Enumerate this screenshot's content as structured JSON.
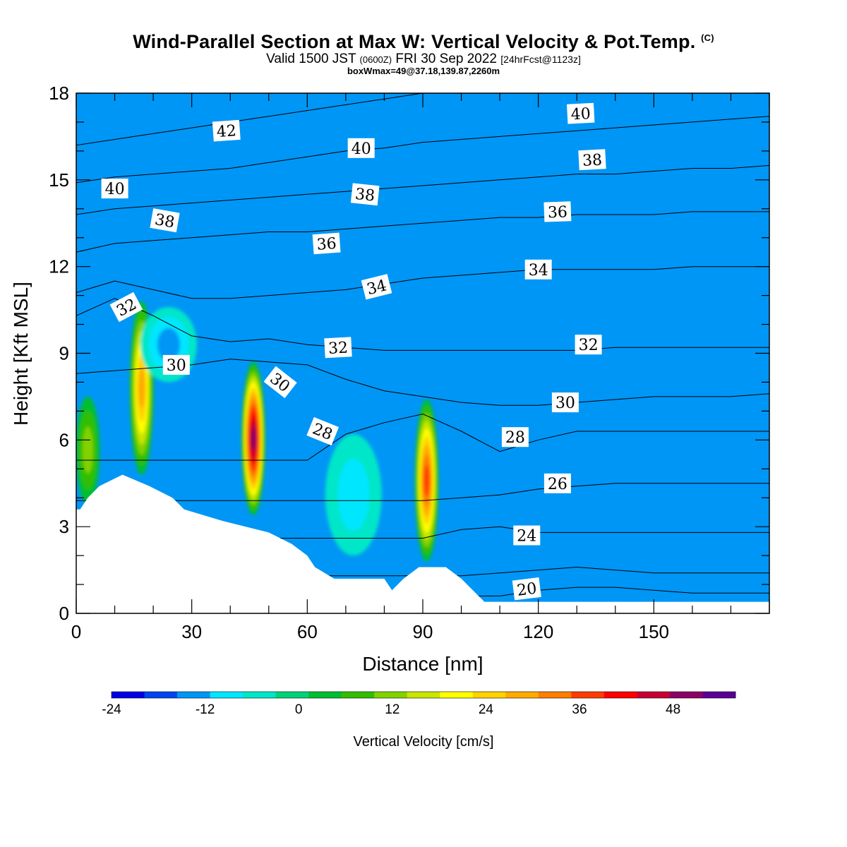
{
  "title": {
    "main": "Wind-Parallel Section at Max W: Vertical Velocity & Pot.Temp.",
    "copyright": "(C)",
    "valid_prefix": "Valid 1500 JST",
    "valid_utc": "(0600Z)",
    "valid_date": "FRI 30 Sep 2022",
    "forecast": "[24hrFcst@1123z]",
    "box_info": "boxWmax=49@37.18,139.87,2260m"
  },
  "chart_data": {
    "type": "heatmap",
    "xlabel": "Distance [nm]",
    "ylabel": "Height [Kft MSL]",
    "xlim": [
      0,
      180
    ],
    "ylim": [
      0,
      18
    ],
    "xticks": [
      "0",
      "30",
      "60",
      "90",
      "120",
      "150"
    ],
    "yticks": [
      "0",
      "3",
      "6",
      "9",
      "12",
      "15",
      "18"
    ],
    "colorbar": {
      "label": "Vertical Velocity [cm/s]",
      "ticks": [
        "-24",
        "-12",
        "0",
        "12",
        "24",
        "36",
        "48"
      ],
      "range": [
        -24,
        56
      ],
      "colors": [
        "#0000e6",
        "#0046f0",
        "#0096f5",
        "#00e6ff",
        "#00e6c8",
        "#00d278",
        "#00be32",
        "#32be00",
        "#82d200",
        "#c8e600",
        "#ffff00",
        "#ffd200",
        "#ffaa00",
        "#ff7d00",
        "#ff3c00",
        "#ff0000",
        "#c80032",
        "#8c0064",
        "#5a0096"
      ]
    },
    "background_level": 2,
    "terrain": [
      [
        0,
        3.6
      ],
      [
        1,
        3.6
      ],
      [
        3,
        4.0
      ],
      [
        6,
        4.4
      ],
      [
        12,
        4.8
      ],
      [
        19,
        4.4
      ],
      [
        25,
        4.0
      ],
      [
        28,
        3.6
      ],
      [
        38,
        3.2
      ],
      [
        50,
        2.8
      ],
      [
        56,
        2.4
      ],
      [
        60,
        2.0
      ],
      [
        62,
        1.6
      ],
      [
        67,
        1.2
      ],
      [
        72,
        1.2
      ],
      [
        80,
        1.2
      ],
      [
        82,
        0.8
      ],
      [
        85,
        1.2
      ],
      [
        89,
        1.6
      ],
      [
        96,
        1.6
      ],
      [
        100,
        1.2
      ],
      [
        103,
        0.8
      ],
      [
        106,
        0.4
      ],
      [
        110,
        0.4
      ],
      [
        115,
        0.4
      ],
      [
        180,
        0.4
      ]
    ],
    "features": [
      {
        "kind": "updraft",
        "name": "Updraft near 17 nm",
        "x": 17,
        "y_bottom": 4.8,
        "y_top": 10.8,
        "max": 30
      },
      {
        "kind": "updraft",
        "name": "Updraft near 46 nm",
        "x": 46,
        "y_bottom": 3.4,
        "y_top": 8.7,
        "max": 49
      },
      {
        "kind": "updraft",
        "name": "Updraft near 91 nm",
        "x": 91,
        "y_bottom": 1.8,
        "y_top": 7.4,
        "max": 36
      },
      {
        "kind": "updraft",
        "name": "Updraft near 3 nm",
        "x": 3,
        "y_bottom": 3.8,
        "y_top": 7.5,
        "max": 14
      },
      {
        "kind": "downdraft",
        "name": "Downdraft near 70 nm",
        "x": 72,
        "y_bottom": 2.0,
        "y_top": 6.2,
        "min": -10
      },
      {
        "kind": "downdraft",
        "name": "Downdraft near 24 nm",
        "x": 24,
        "y_bottom": 8.0,
        "y_top": 10.6,
        "min": -14
      }
    ],
    "theta_levels": [
      {
        "value": 20,
        "y": [
          0.6,
          0.6,
          0.6,
          0.6,
          0.6,
          0.6,
          0.6,
          0.6,
          0.6,
          0.6,
          0.6,
          0.6,
          0.8,
          0.9,
          0.9,
          0.8,
          0.7,
          0.7,
          0.7
        ]
      },
      {
        "value": 22,
        "y": [
          1.3,
          1.3,
          1.3,
          1.3,
          1.3,
          1.3,
          1.3,
          1.3,
          1.3,
          1.3,
          1.3,
          1.4,
          1.5,
          1.6,
          1.5,
          1.4,
          1.4,
          1.4,
          1.4
        ]
      },
      {
        "value": 24,
        "y": [
          2.6,
          2.6,
          2.6,
          2.6,
          2.6,
          2.6,
          2.6,
          2.6,
          2.6,
          2.6,
          2.9,
          3.0,
          2.8,
          2.8,
          2.8,
          2.8,
          2.8,
          2.8,
          2.8
        ]
      },
      {
        "value": 26,
        "y": [
          3.9,
          3.9,
          3.9,
          3.9,
          3.9,
          3.9,
          3.9,
          3.9,
          3.9,
          3.9,
          4.0,
          4.1,
          4.3,
          4.4,
          4.5,
          4.5,
          4.5,
          4.5,
          4.5
        ]
      },
      {
        "value": 28,
        "y": [
          5.3,
          5.3,
          5.3,
          5.3,
          5.3,
          5.3,
          5.3,
          6.2,
          6.6,
          6.9,
          6.3,
          5.6,
          6.0,
          6.3,
          6.3,
          6.3,
          6.3,
          6.3,
          6.3
        ]
      },
      {
        "value": 30,
        "y": [
          8.3,
          8.4,
          8.5,
          8.6,
          8.8,
          8.7,
          8.6,
          8.1,
          7.7,
          7.5,
          7.3,
          7.2,
          7.2,
          7.3,
          7.4,
          7.5,
          7.5,
          7.5,
          7.6
        ]
      },
      {
        "value": 32,
        "y": [
          10.3,
          10.9,
          10.3,
          9.6,
          9.4,
          9.5,
          9.3,
          9.2,
          9.1,
          9.1,
          9.1,
          9.1,
          9.1,
          9.1,
          9.2,
          9.2,
          9.2,
          9.2,
          9.2
        ]
      },
      {
        "value": 34,
        "y": [
          11.1,
          11.5,
          11.2,
          10.9,
          10.9,
          11.0,
          11.1,
          11.2,
          11.4,
          11.6,
          11.7,
          11.8,
          11.9,
          11.9,
          11.9,
          11.9,
          12.0,
          12.0,
          12.0
        ]
      },
      {
        "value": 36,
        "y": [
          12.5,
          12.8,
          12.9,
          13.0,
          13.1,
          13.2,
          13.2,
          13.3,
          13.4,
          13.5,
          13.6,
          13.7,
          13.7,
          13.8,
          13.8,
          13.8,
          13.9,
          13.9,
          13.9
        ]
      },
      {
        "value": 38,
        "y": [
          13.8,
          14.0,
          14.1,
          14.2,
          14.3,
          14.4,
          14.5,
          14.6,
          14.7,
          14.8,
          14.9,
          15.0,
          15.1,
          15.2,
          15.2,
          15.3,
          15.4,
          15.4,
          15.5
        ]
      },
      {
        "value": 40,
        "y": [
          14.9,
          15.1,
          15.2,
          15.3,
          15.4,
          15.6,
          15.8,
          16.0,
          16.1,
          16.3,
          16.4,
          16.5,
          16.6,
          16.7,
          16.8,
          16.9,
          17.0,
          17.1,
          17.2
        ]
      },
      {
        "value": 42,
        "y": [
          16.2,
          16.4,
          16.6,
          16.8,
          17.0,
          17.2,
          17.4,
          17.6,
          17.8,
          18.0,
          18.1,
          18.2,
          18.3,
          18.4,
          18.5,
          18.6,
          18.7,
          18.8,
          18.9
        ]
      }
    ],
    "theta_labels": [
      {
        "text": "42",
        "x": 39,
        "y": 16.7,
        "rot": -4
      },
      {
        "text": "40",
        "x": 74,
        "y": 16.1,
        "rot": 0
      },
      {
        "text": "40",
        "x": 131,
        "y": 17.3,
        "rot": -3
      },
      {
        "text": "40",
        "x": 10,
        "y": 14.7,
        "rot": 0
      },
      {
        "text": "38",
        "x": 75,
        "y": 14.5,
        "rot": 6
      },
      {
        "text": "38",
        "x": 134,
        "y": 15.7,
        "rot": -3
      },
      {
        "text": "38",
        "x": 23,
        "y": 13.6,
        "rot": 10
      },
      {
        "text": "36",
        "x": 65,
        "y": 12.8,
        "rot": -4
      },
      {
        "text": "36",
        "x": 125,
        "y": 13.9,
        "rot": -2
      },
      {
        "text": "34",
        "x": 78,
        "y": 11.3,
        "rot": -14
      },
      {
        "text": "34",
        "x": 120,
        "y": 11.9,
        "rot": 0
      },
      {
        "text": "32",
        "x": 13,
        "y": 10.6,
        "rot": -28
      },
      {
        "text": "32",
        "x": 68,
        "y": 9.2,
        "rot": -3
      },
      {
        "text": "32",
        "x": 133,
        "y": 9.3,
        "rot": 0
      },
      {
        "text": "30",
        "x": 26,
        "y": 8.6,
        "rot": 0
      },
      {
        "text": "30",
        "x": 53,
        "y": 8.0,
        "rot": 38
      },
      {
        "text": "30",
        "x": 127,
        "y": 7.3,
        "rot": 0
      },
      {
        "text": "28",
        "x": 64,
        "y": 6.3,
        "rot": 22
      },
      {
        "text": "28",
        "x": 114,
        "y": 6.1,
        "rot": 0
      },
      {
        "text": "26",
        "x": 125,
        "y": 4.5,
        "rot": 0
      },
      {
        "text": "24",
        "x": 117,
        "y": 2.7,
        "rot": 0
      },
      {
        "text": "20",
        "x": 117,
        "y": 0.85,
        "rot": -7
      }
    ]
  }
}
